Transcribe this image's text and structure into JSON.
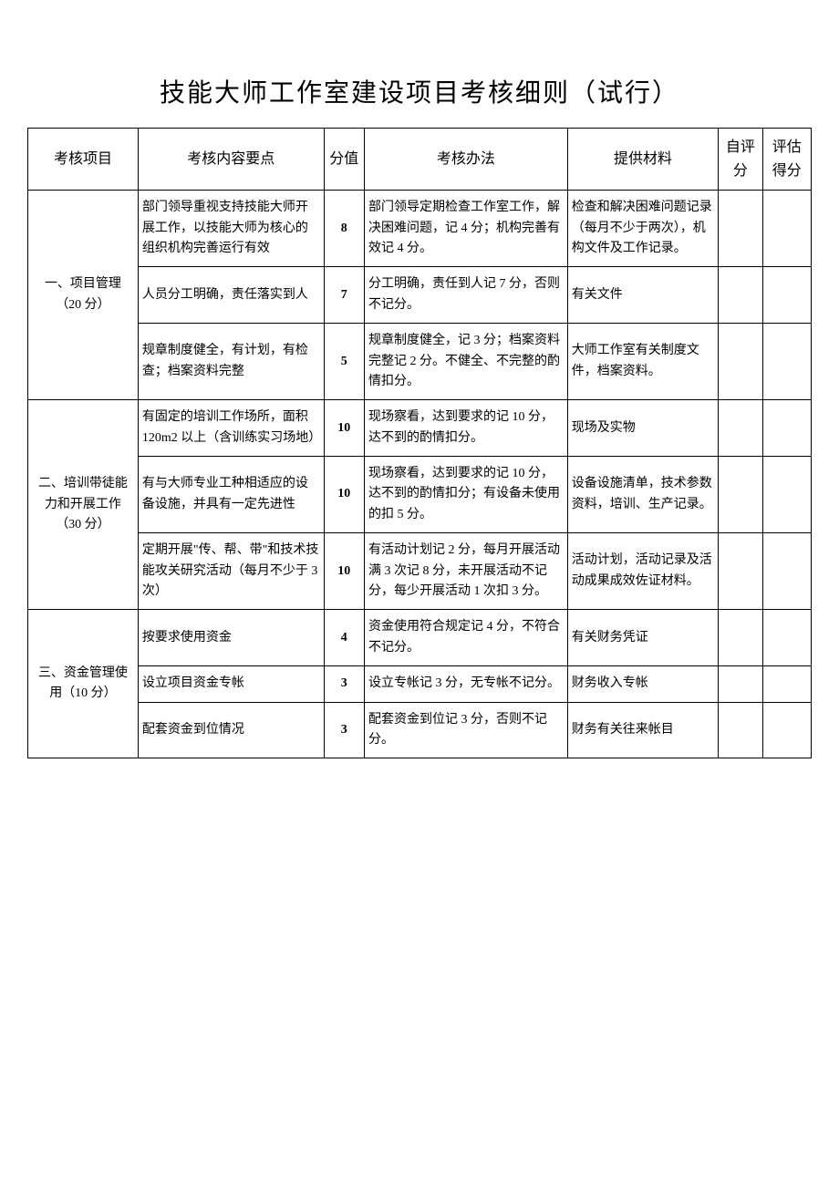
{
  "title": "技能大师工作室建设项目考核细则（试行）",
  "headers": {
    "project": "考核项目",
    "content": "考核内容要点",
    "score": "分值",
    "method": "考核办法",
    "material": "提供材料",
    "self": "自评分",
    "eval": "评估得分"
  },
  "sections": [
    {
      "name": "一、项目管理（20 分）",
      "rows": [
        {
          "content": "部门领导重视支持技能大师开展工作，以技能大师为核心的组织机构完善运行有效",
          "score": "8",
          "method": "部门领导定期检查工作室工作，解决困难问题，记 4 分；机构完善有效记 4 分。",
          "material": "检查和解决困难问题记录（每月不少于两次），机构文件及工作记录。"
        },
        {
          "content": "人员分工明确，责任落实到人",
          "score": "7",
          "method": "分工明确，责任到人记 7 分，否则不记分。",
          "material": "有关文件"
        },
        {
          "content": "规章制度健全，有计划，有检查；档案资料完整",
          "score": "5",
          "method": "规章制度健全，记 3 分；档案资料完整记 2 分。不健全、不完整的酌情扣分。",
          "material": "大师工作室有关制度文件，档案资料。"
        }
      ]
    },
    {
      "name": "二、培训带徒能力和开展工作（30 分）",
      "rows": [
        {
          "content": "有固定的培训工作场所，面积 120m2 以上（含训练实习场地）",
          "score": "10",
          "method": "现场察看，达到要求的记 10 分，达不到的酌情扣分。",
          "material": "现场及实物"
        },
        {
          "content": "有与大师专业工种相适应的设备设施，并具有一定先进性",
          "score": "10",
          "method": "现场察看，达到要求的记 10 分，达不到的酌情扣分；有设备未使用的扣 5 分。",
          "material": "设备设施清单，技术参数资料，培训、生产记录。"
        },
        {
          "content": "定期开展\"传、帮、带\"和技术技能攻关研究活动（每月不少于 3 次）",
          "score": "10",
          "method": "有活动计划记 2 分，每月开展活动满 3 次记 8 分，未开展活动不记分，每少开展活动 1 次扣 3 分。",
          "material": "活动计划，活动记录及活动成果成效佐证材料。"
        }
      ]
    },
    {
      "name": "三、资金管理使用（10 分）",
      "rows": [
        {
          "content": "按要求使用资金",
          "score": "4",
          "method": "资金使用符合规定记 4 分，不符合不记分。",
          "material": "有关财务凭证"
        },
        {
          "content": "设立项目资金专帐",
          "score": "3",
          "method": "设立专帐记 3 分，无专帐不记分。",
          "material": "财务收入专帐"
        },
        {
          "content": "配套资金到位情况",
          "score": "3",
          "method": "配套资金到位记 3 分，否则不记分。",
          "material": "财务有关往来帐目"
        }
      ]
    }
  ]
}
